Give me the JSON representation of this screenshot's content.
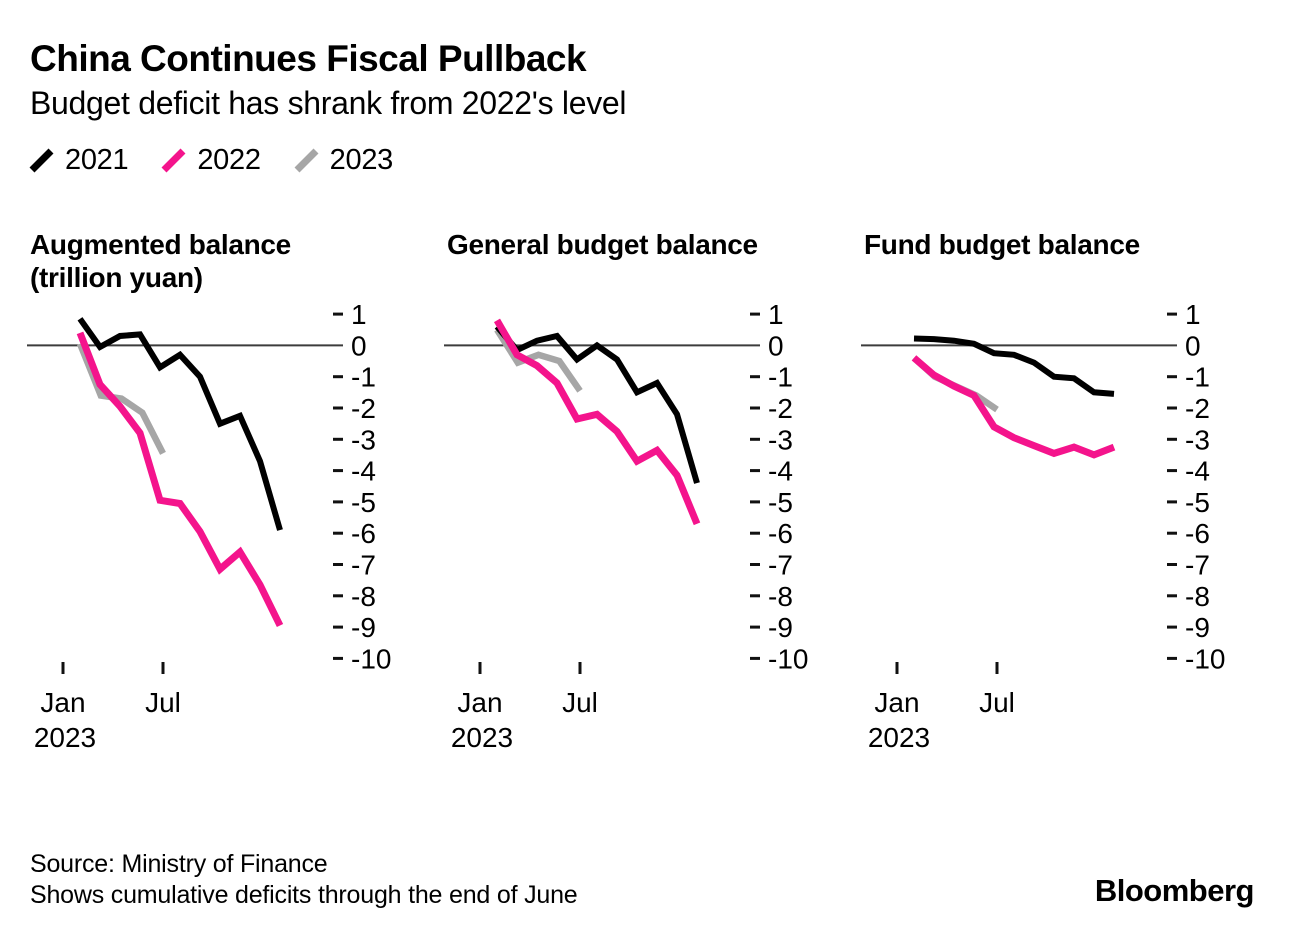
{
  "header": {
    "title": "China Continues Fiscal Pullback",
    "subtitle": "Budget deficit has shrank from 2022's level"
  },
  "legend": [
    {
      "label": "2021",
      "color": "#000000"
    },
    {
      "label": "2022",
      "color": "#f4148c"
    },
    {
      "label": "2023",
      "color": "#a6a6a6"
    }
  ],
  "axis": {
    "y_ticks": [
      1,
      0,
      -1,
      -2,
      -3,
      -4,
      -5,
      -6,
      -7,
      -8,
      -9,
      -10
    ],
    "x_ticks": [
      {
        "label": "Jan",
        "sublabel": "2023"
      },
      {
        "label": "Jul",
        "sublabel": ""
      }
    ]
  },
  "chart_data": [
    {
      "type": "line",
      "title": "Augmented balance",
      "title_line2": "(trillion yuan)",
      "ylabel": "trillion yuan",
      "ylim": [
        -10,
        1
      ],
      "grid": "zero-line-only",
      "legend_position": "top-left-shared",
      "series": [
        {
          "name": "2021",
          "color": "#000000",
          "months": [
            "Feb",
            "Mar",
            "Apr",
            "May",
            "Jun",
            "Jul",
            "Aug",
            "Sep",
            "Oct",
            "Nov",
            "Dec"
          ],
          "values": [
            0.85,
            -0.05,
            0.3,
            0.35,
            -0.7,
            -0.3,
            -1.0,
            -2.5,
            -2.25,
            -3.7,
            -5.9
          ]
        },
        {
          "name": "2022",
          "color": "#f4148c",
          "months": [
            "Feb",
            "Mar",
            "Apr",
            "May",
            "Jun",
            "Jul",
            "Aug",
            "Sep",
            "Oct",
            "Nov",
            "Dec"
          ],
          "values": [
            0.4,
            -1.25,
            -1.95,
            -2.8,
            -4.95,
            -5.05,
            -5.95,
            -7.15,
            -6.6,
            -7.65,
            -8.95
          ]
        },
        {
          "name": "2023",
          "color": "#a6a6a6",
          "months": [
            "Feb",
            "Mar",
            "Apr",
            "May",
            "Jun"
          ],
          "values": [
            0.05,
            -1.6,
            -1.7,
            -2.15,
            -3.45
          ]
        }
      ]
    },
    {
      "type": "line",
      "title": "General budget balance",
      "ylim": [
        -10,
        1
      ],
      "grid": "zero-line-only",
      "series": [
        {
          "name": "2021",
          "color": "#000000",
          "months": [
            "Feb",
            "Mar",
            "Apr",
            "May",
            "Jun",
            "Jul",
            "Aug",
            "Sep",
            "Oct",
            "Nov",
            "Dec"
          ],
          "values": [
            0.6,
            -0.15,
            0.15,
            0.3,
            -0.45,
            0.0,
            -0.45,
            -1.5,
            -1.2,
            -2.2,
            -4.4
          ]
        },
        {
          "name": "2022",
          "color": "#f4148c",
          "months": [
            "Feb",
            "Mar",
            "Apr",
            "May",
            "Jun",
            "Jul",
            "Aug",
            "Sep",
            "Oct",
            "Nov",
            "Dec"
          ],
          "values": [
            0.8,
            -0.3,
            -0.65,
            -1.2,
            -2.35,
            -2.2,
            -2.75,
            -3.7,
            -3.35,
            -4.15,
            -5.7
          ]
        },
        {
          "name": "2023",
          "color": "#a6a6a6",
          "months": [
            "Feb",
            "Mar",
            "Apr",
            "May",
            "Jun"
          ],
          "values": [
            0.5,
            -0.55,
            -0.3,
            -0.5,
            -1.45
          ]
        }
      ]
    },
    {
      "type": "line",
      "title": "Fund budget balance",
      "ylim": [
        -10,
        1
      ],
      "grid": "zero-line-only",
      "series": [
        {
          "name": "2021",
          "color": "#000000",
          "months": [
            "Feb",
            "Mar",
            "Apr",
            "May",
            "Jun",
            "Jul",
            "Aug",
            "Sep",
            "Oct",
            "Nov",
            "Dec"
          ],
          "values": [
            0.22,
            0.2,
            0.15,
            0.05,
            -0.25,
            -0.3,
            -0.55,
            -1.0,
            -1.05,
            -1.5,
            -1.55
          ]
        },
        {
          "name": "2022",
          "color": "#f4148c",
          "months": [
            "Feb",
            "Mar",
            "Apr",
            "May",
            "Jun",
            "Jul",
            "Aug",
            "Sep",
            "Oct",
            "Nov",
            "Dec"
          ],
          "values": [
            -0.4,
            -0.95,
            -1.3,
            -1.6,
            -2.6,
            -2.95,
            -3.2,
            -3.45,
            -3.25,
            -3.5,
            -3.25
          ]
        },
        {
          "name": "2023",
          "color": "#a6a6a6",
          "months": [
            "Feb",
            "Mar",
            "Apr",
            "May",
            "Jun"
          ],
          "values": [
            -0.4,
            -1.0,
            -1.3,
            -1.6,
            -2.05
          ]
        }
      ]
    }
  ],
  "footer": {
    "source": "Source: Ministry of Finance",
    "note": "Shows cumulative deficits through the end of June",
    "brand": "Bloomberg"
  }
}
